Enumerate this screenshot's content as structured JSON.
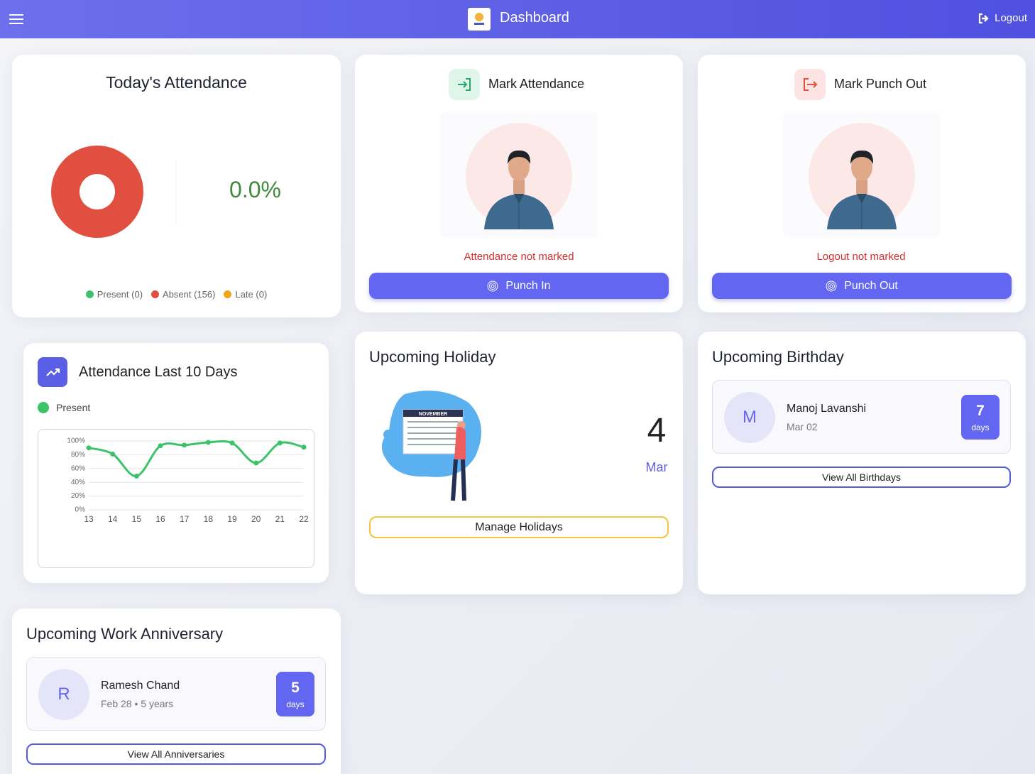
{
  "chart_data": [
    {
      "type": "pie",
      "title": "Today's Attendance",
      "categories": [
        "Present",
        "Absent",
        "Late"
      ],
      "values": [
        0,
        156,
        0
      ],
      "colors": [
        "#3cc36a",
        "#e04f3f",
        "#f2a51a"
      ],
      "legend_labels": [
        "Present (0)",
        "Absent (156)",
        "Late (0)"
      ],
      "center_label": "0.0%",
      "donut": true
    },
    {
      "type": "line",
      "title": "Attendance Last 10 Days",
      "x": [
        13,
        14,
        15,
        16,
        17,
        18,
        19,
        20,
        21,
        22
      ],
      "xlim": [
        13,
        22
      ],
      "xticks": [
        13,
        14,
        15,
        16,
        17,
        18,
        19,
        20,
        21,
        22
      ],
      "ylim": [
        0,
        100
      ],
      "yticks": [
        {
          "value": 0,
          "label": "0%"
        },
        {
          "value": 20,
          "label": "20%"
        },
        {
          "value": 40,
          "label": "40%"
        },
        {
          "value": 60,
          "label": "60%"
        },
        {
          "value": 80,
          "label": "80%"
        },
        {
          "value": 100,
          "label": "100%"
        }
      ],
      "grid": true,
      "series": [
        {
          "name": "Present",
          "color": "#3cc36a",
          "values": [
            90,
            81,
            49,
            93,
            94,
            98,
            97,
            68,
            97,
            91
          ]
        }
      ]
    }
  ],
  "header": {
    "title": "Dashboard",
    "logout": "Logout"
  },
  "punch_in": {
    "title": "Mark Attendance",
    "status": "Attendance not marked",
    "button": "Punch In"
  },
  "punch_out": {
    "title": "Mark Punch Out",
    "status": "Logout not marked",
    "button": "Punch Out"
  },
  "holiday": {
    "title": "Upcoming Holiday",
    "illustration_label": "NOVEMBER",
    "day": "4",
    "month": "Mar",
    "button": "Manage Holidays"
  },
  "birthday": {
    "title": "Upcoming Birthday",
    "person": {
      "initial": "M",
      "name": "Manoj Lavanshi",
      "date": "Mar 02",
      "count": "7",
      "unit": "days"
    },
    "button": "View All Birthdays"
  },
  "anniversary": {
    "title": "Upcoming Work Anniversary",
    "person": {
      "initial": "R",
      "name": "Ramesh Chand",
      "meta": "Feb 28 • 5 years",
      "count": "5",
      "unit": "days"
    },
    "button": "View All Anniversaries"
  }
}
